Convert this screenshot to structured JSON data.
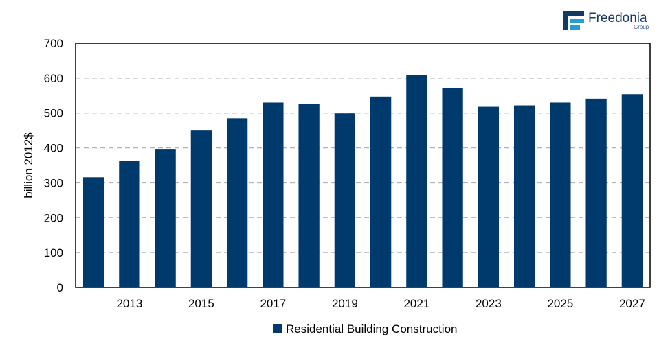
{
  "logo": {
    "name": "Freedonia",
    "sub": "Group",
    "colors": {
      "dark": "#123a66",
      "light": "#21a0d2"
    }
  },
  "chart_data": {
    "type": "bar",
    "categories": [
      "2012",
      "2013",
      "2014",
      "2015",
      "2016",
      "2017",
      "2018",
      "2019",
      "2020",
      "2021",
      "2022",
      "2023",
      "2024",
      "2025",
      "2026",
      "2027"
    ],
    "x_tick_labels_shown": [
      "2013",
      "2015",
      "2017",
      "2019",
      "2021",
      "2023",
      "2025",
      "2027"
    ],
    "series": [
      {
        "name": "Residential Building Construction",
        "color": "#003a6c",
        "values": [
          316,
          362,
          397,
          450,
          485,
          530,
          526,
          499,
          547,
          608,
          571,
          518,
          522,
          530,
          541,
          554
        ]
      }
    ],
    "ylabel": "billion 2012$",
    "xlabel": "",
    "ylim": [
      0,
      700
    ],
    "yticks": [
      0,
      100,
      200,
      300,
      400,
      500,
      600,
      700
    ],
    "grid": "horizontal dashed",
    "legend_position": "bottom-center"
  }
}
